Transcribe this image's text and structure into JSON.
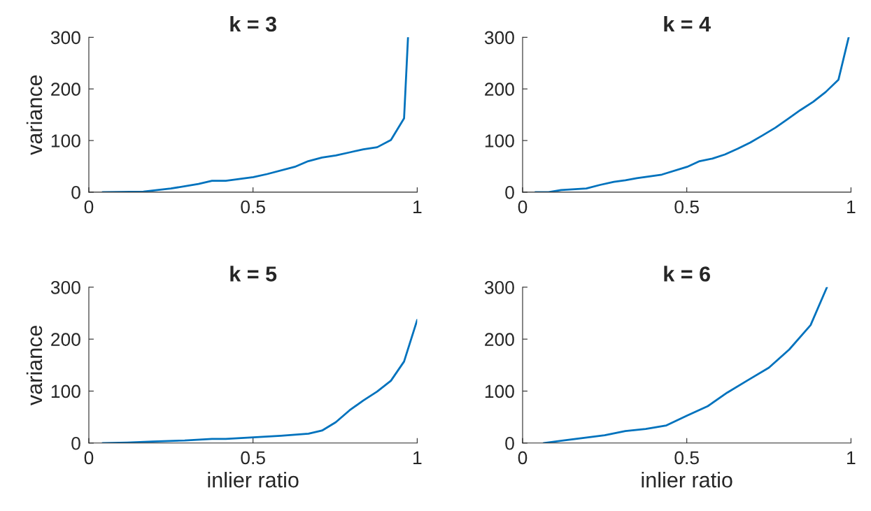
{
  "chart_data": [
    {
      "type": "line",
      "title": "k = 3",
      "ylabel": "variance",
      "xlim": [
        0,
        1
      ],
      "ylim": [
        0,
        300
      ],
      "xticks": [
        0,
        0.5,
        1
      ],
      "yticks": [
        0,
        100,
        200,
        300
      ],
      "grid": false,
      "legend": false,
      "series": [
        {
          "color": "#0072bd",
          "x": [
            0.042,
            0.166,
            0.25,
            0.334,
            0.375,
            0.417,
            0.501,
            0.543,
            0.627,
            0.668,
            0.71,
            0.752,
            0.794,
            0.836,
            0.878,
            0.92,
            0.96,
            0.972
          ],
          "values": [
            0,
            1,
            7,
            16,
            22,
            22,
            29,
            35,
            49,
            60,
            67,
            71,
            77,
            83,
            87,
            101,
            143,
            300
          ]
        }
      ]
    },
    {
      "type": "line",
      "title": "k = 4",
      "xlim": [
        0,
        1
      ],
      "ylim": [
        0,
        300
      ],
      "xticks": [
        0,
        0.5,
        1
      ],
      "yticks": [
        0,
        100,
        200,
        300
      ],
      "grid": false,
      "legend": false,
      "series": [
        {
          "color": "#0072bd",
          "x": [
            0.039,
            0.079,
            0.117,
            0.194,
            0.236,
            0.278,
            0.313,
            0.348,
            0.424,
            0.501,
            0.539,
            0.578,
            0.616,
            0.655,
            0.693,
            0.731,
            0.77,
            0.808,
            0.846,
            0.885,
            0.923,
            0.962,
            0.993
          ],
          "values": [
            0,
            0,
            4,
            7,
            14,
            20,
            23,
            27,
            34,
            49,
            60,
            65,
            73,
            84,
            96,
            110,
            125,
            142,
            159,
            175,
            194,
            218,
            300
          ]
        }
      ]
    },
    {
      "type": "line",
      "title": "k = 5",
      "xlabel": "inlier ratio",
      "ylabel": "variance",
      "xlim": [
        0,
        1
      ],
      "ylim": [
        0,
        300
      ],
      "xticks": [
        0,
        0.5,
        1
      ],
      "yticks": [
        0,
        100,
        200,
        300
      ],
      "grid": false,
      "legend": false,
      "series": [
        {
          "color": "#0072bd",
          "x": [
            0.042,
            0.117,
            0.194,
            0.292,
            0.375,
            0.417,
            0.501,
            0.585,
            0.669,
            0.71,
            0.752,
            0.794,
            0.836,
            0.878,
            0.92,
            0.96,
            1.0
          ],
          "values": [
            0,
            1,
            3,
            5,
            8,
            8,
            11,
            14,
            18,
            24,
            40,
            63,
            82,
            99,
            120,
            157,
            237
          ]
        }
      ]
    },
    {
      "type": "line",
      "title": "k = 6",
      "xlabel": "inlier ratio",
      "xlim": [
        0,
        1
      ],
      "ylim": [
        0,
        300
      ],
      "xticks": [
        0,
        0.5,
        1
      ],
      "yticks": [
        0,
        100,
        200,
        300
      ],
      "grid": false,
      "legend": false,
      "series": [
        {
          "color": "#0072bd",
          "x": [
            0.064,
            0.124,
            0.187,
            0.25,
            0.313,
            0.375,
            0.438,
            0.501,
            0.564,
            0.623,
            0.686,
            0.75,
            0.812,
            0.877,
            0.927
          ],
          "values": [
            0,
            5,
            10,
            15,
            23,
            27,
            34,
            53,
            71,
            97,
            121,
            145,
            180,
            227,
            300
          ]
        }
      ]
    }
  ]
}
